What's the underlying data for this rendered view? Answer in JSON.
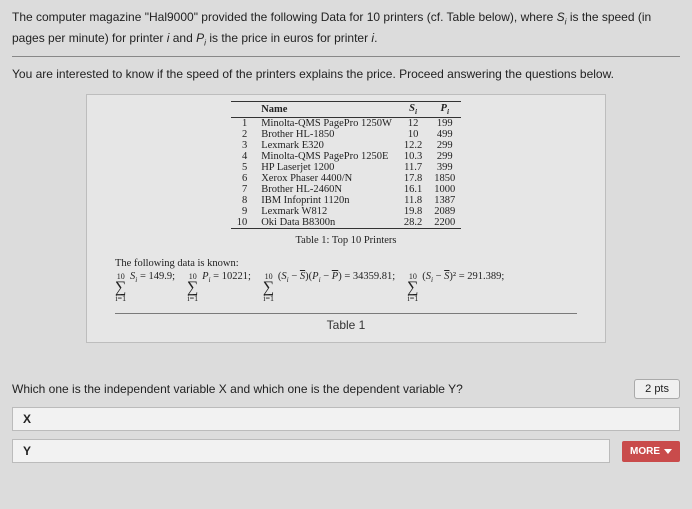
{
  "intro": {
    "part1": "The computer magazine \"Hal9000\" provided the following Data for 10 printers (cf. Table below), where ",
    "svar": "S",
    "ssub": "i",
    "part2": " is the speed (in pages per minute) for printer ",
    "ivar": "i",
    "part3": " and ",
    "pvar": "P",
    "psub": "i",
    "part4": " is the price in euros for printer ",
    "part5": "."
  },
  "sub": "You are interested to know if the speed of the printers explains the price. Proceed answering the questions below.",
  "table": {
    "headers": {
      "name": "Name",
      "s": "Sᵢ",
      "p": "Pᵢ"
    },
    "rows": [
      {
        "n": "1",
        "name": "Minolta-QMS PagePro 1250W",
        "s": "12",
        "p": "199"
      },
      {
        "n": "2",
        "name": "Brother HL-1850",
        "s": "10",
        "p": "499"
      },
      {
        "n": "3",
        "name": "Lexmark E320",
        "s": "12.2",
        "p": "299"
      },
      {
        "n": "4",
        "name": "Minolta-QMS PagePro 1250E",
        "s": "10.3",
        "p": "299"
      },
      {
        "n": "5",
        "name": "HP Laserjet 1200",
        "s": "11.7",
        "p": "399"
      },
      {
        "n": "6",
        "name": "Xerox Phaser 4400/N",
        "s": "17.8",
        "p": "1850"
      },
      {
        "n": "7",
        "name": "Brother HL-2460N",
        "s": "16.1",
        "p": "1000"
      },
      {
        "n": "8",
        "name": "IBM Infoprint 1120n",
        "s": "11.8",
        "p": "1387"
      },
      {
        "n": "9",
        "name": "Lexmark W812",
        "s": "19.8",
        "p": "2089"
      },
      {
        "n": "10",
        "name": "Oki Data B8300n",
        "s": "28.2",
        "p": "2200"
      }
    ],
    "caption": "Table 1: Top 10 Printers"
  },
  "known": {
    "label": "The following data is known:",
    "sumTop": "10",
    "sumBot": "i=1",
    "f1a": "Sᵢ = 149.9;",
    "f2a": "Pᵢ = 10221;",
    "f3a": "(Sᵢ − S̄)(Pᵢ − P̄) = 34359.81;",
    "f4a": "(Sᵢ − S̄)² = 291.389;"
  },
  "tab1": "Table 1",
  "question": "Which one is the independent variable X and which one is the dependent variable Y?",
  "pts": "2 pts",
  "ans": {
    "x": "X",
    "y": "Y"
  },
  "more": "MORE"
}
